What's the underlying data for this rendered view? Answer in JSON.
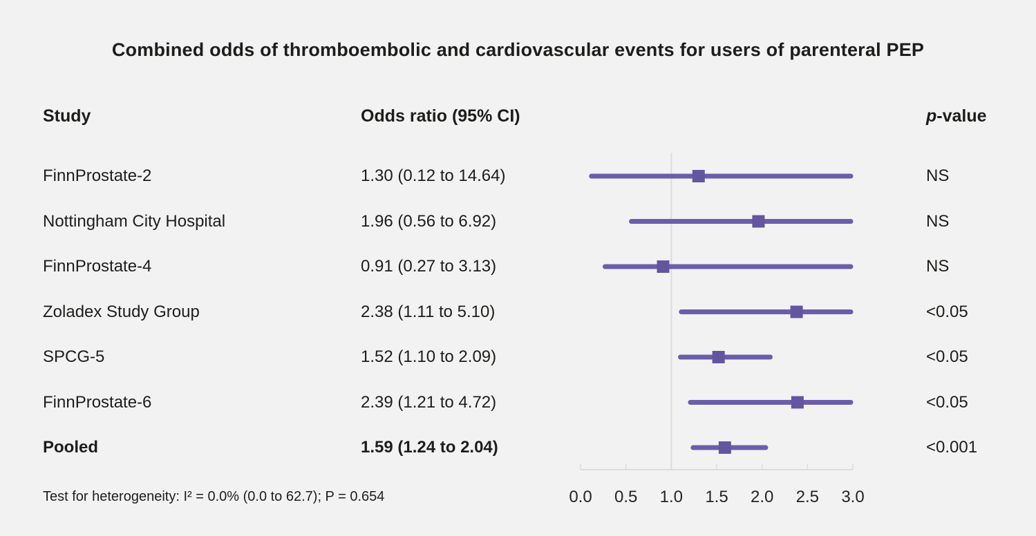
{
  "title": "Combined odds of thromboembolic and cardiovascular events for users of parenteral PEP",
  "columns": {
    "study": "Study",
    "odds": "Odds ratio (95% CI)",
    "p_italic": "p",
    "p_rest": "-value"
  },
  "footer": "Test for heterogeneity: I² = 0.0% (0.0 to 62.7); P = 0.654",
  "colors": {
    "background": "#f2f2f2",
    "text": "#1d1d1b",
    "ci_line": "#6c5dab",
    "marker": "#63559f",
    "axis": "#d9dde2",
    "reference_line": "#d9dde2"
  },
  "chart_data": {
    "type": "scatter",
    "variant": "forest-plot",
    "title": "Combined odds of thromboembolic and cardiovascular events for users of parenteral PEP",
    "xlabel": "Odds ratio",
    "ylabel": "Study",
    "xlim": [
      0.0,
      3.0
    ],
    "x_tick_values": [
      0.0,
      0.5,
      1.0,
      1.5,
      2.0,
      2.5,
      3.0
    ],
    "x_tick_labels": [
      "0.0",
      "0.5",
      "1.0",
      "1.5",
      "2.0",
      "2.5",
      "3.0"
    ],
    "reference_line_x": 1.0,
    "grid": false,
    "legend": "none",
    "rows": [
      {
        "study": "FinnProstate-2",
        "or_label": "1.30 (0.12 to 14.64)",
        "or": 1.3,
        "ci_low": 0.12,
        "ci_high": 14.64,
        "p": "NS",
        "bold": false
      },
      {
        "study": "Nottingham City Hospital",
        "or_label": "1.96 (0.56 to 6.92)",
        "or": 1.96,
        "ci_low": 0.56,
        "ci_high": 6.92,
        "p": "NS",
        "bold": false
      },
      {
        "study": "FinnProstate-4",
        "or_label": "0.91 (0.27 to 3.13)",
        "or": 0.91,
        "ci_low": 0.27,
        "ci_high": 3.13,
        "p": "NS",
        "bold": false
      },
      {
        "study": "Zoladex Study Group",
        "or_label": "2.38 (1.11 to 5.10)",
        "or": 2.38,
        "ci_low": 1.11,
        "ci_high": 5.1,
        "p": "<0.05",
        "bold": false
      },
      {
        "study": "SPCG-5",
        "or_label": "1.52 (1.10 to 2.09)",
        "or": 1.52,
        "ci_low": 1.1,
        "ci_high": 2.09,
        "p": "<0.05",
        "bold": false
      },
      {
        "study": "FinnProstate-6",
        "or_label": "2.39 (1.21 to 4.72)",
        "or": 2.39,
        "ci_low": 1.21,
        "ci_high": 4.72,
        "p": "<0.05",
        "bold": false
      },
      {
        "study": "Pooled",
        "or_label": "1.59 (1.24 to 2.04)",
        "or": 1.59,
        "ci_low": 1.24,
        "ci_high": 2.04,
        "p": "<0.001",
        "bold": true
      }
    ]
  }
}
